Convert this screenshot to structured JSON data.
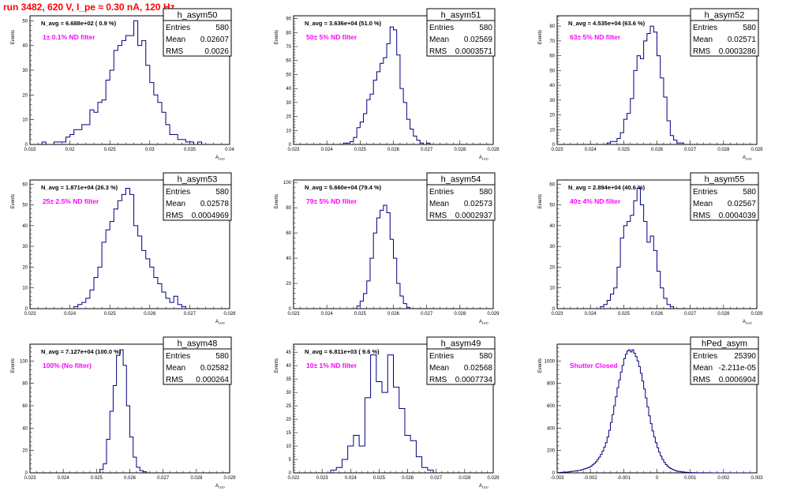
{
  "title": "run 3482,   620 V, I_pe ≈ 0.30 nA, 120 Hz",
  "colors": {
    "title": "#ff0000",
    "hist": "#000080",
    "label": "#ff00ff",
    "frame": "#000000"
  },
  "chart_data": [
    {
      "type": "bar",
      "name": "h_asym50",
      "stats": {
        "Entries": "580",
        "Mean": "0.02607",
        "RMS": "0.0026"
      },
      "navg": "N_avg = 6.688e+02 ( 0.9 %)",
      "label": "1± 0.1% ND filter",
      "xlabel": "A",
      "xlabel_sub": "LED",
      "ylabel": "Events",
      "xlim": [
        0.015,
        0.04
      ],
      "ylim": [
        0,
        52
      ],
      "xticks": [
        0.015,
        0.02,
        0.025,
        0.03,
        0.035,
        0.04
      ],
      "xtick_labels": [
        "0.015",
        "0.02",
        "0.025",
        "0.03",
        "0.035",
        "0.04"
      ],
      "yticks": [
        0,
        10,
        20,
        30,
        40,
        50
      ],
      "ytick_labels": [
        "0",
        "10",
        "20",
        "30",
        "40",
        "50"
      ],
      "bin_start": 0.0165,
      "bin_width": 0.0005,
      "values": [
        1,
        0,
        0,
        1,
        1,
        1,
        3,
        4,
        6,
        6,
        8,
        8,
        14,
        13,
        17,
        18,
        26,
        30,
        38,
        40,
        42,
        44,
        44,
        50,
        40,
        42,
        32,
        25,
        20,
        17,
        13,
        8,
        4,
        4,
        2,
        2,
        1,
        1,
        0,
        1
      ]
    },
    {
      "type": "bar",
      "name": "h_asym51",
      "stats": {
        "Entries": "580",
        "Mean": "0.02569",
        "RMS": "0.0003571"
      },
      "navg": "N_avg = 3.636e+04 (51.0 %)",
      "label": "50± 5% ND filter",
      "xlabel": "A",
      "xlabel_sub": "LED",
      "ylabel": "Events",
      "xlim": [
        0.023,
        0.029
      ],
      "ylim": [
        0,
        92
      ],
      "xticks": [
        0.023,
        0.024,
        0.025,
        0.026,
        0.027,
        0.028,
        0.029
      ],
      "xtick_labels": [
        "0.023",
        "0.024",
        "0.025",
        "0.026",
        "0.027",
        "0.028",
        "0.029"
      ],
      "yticks": [
        0,
        10,
        20,
        30,
        40,
        50,
        60,
        70,
        80,
        90
      ],
      "ytick_labels": [
        "0",
        "10",
        "20",
        "30",
        "40",
        "50",
        "60",
        "70",
        "80",
        "90"
      ],
      "bin_start": 0.0245,
      "bin_width": 0.0001,
      "values": [
        1,
        1,
        2,
        5,
        12,
        16,
        22,
        32,
        36,
        46,
        52,
        58,
        62,
        72,
        84,
        82,
        64,
        40,
        30,
        18,
        11,
        6,
        3,
        1,
        0,
        1
      ]
    },
    {
      "type": "bar",
      "name": "h_asym52",
      "stats": {
        "Entries": "580",
        "Mean": "0.02571",
        "RMS": "0.0003286"
      },
      "navg": "N_avg = 4.535e+04 (63.6 %)",
      "label": "63± 5% ND filter",
      "xlabel": "A",
      "xlabel_sub": "LED",
      "ylabel": "Events",
      "xlim": [
        0.023,
        0.029
      ],
      "ylim": [
        0,
        87
      ],
      "xticks": [
        0.023,
        0.024,
        0.025,
        0.026,
        0.027,
        0.028,
        0.029
      ],
      "xtick_labels": [
        "0.023",
        "0.024",
        "0.025",
        "0.026",
        "0.027",
        "0.028",
        "0.029"
      ],
      "yticks": [
        0,
        10,
        20,
        30,
        40,
        50,
        60,
        70,
        80
      ],
      "ytick_labels": [
        "0",
        "10",
        "20",
        "30",
        "40",
        "50",
        "60",
        "70",
        "80"
      ],
      "bin_start": 0.0245,
      "bin_width": 0.0001,
      "values": [
        1,
        2,
        2,
        4,
        8,
        17,
        21,
        31,
        50,
        60,
        58,
        70,
        75,
        80,
        76,
        60,
        45,
        32,
        16,
        6,
        3,
        1,
        1
      ]
    },
    {
      "type": "bar",
      "name": "h_asym53",
      "stats": {
        "Entries": "580",
        "Mean": "0.02578",
        "RMS": "0.0004969"
      },
      "navg": "N_avg = 1.871e+04 (26.3 %)",
      "label": "25± 2.5% ND filter",
      "xlabel": "A",
      "xlabel_sub": "LED",
      "ylabel": "Events",
      "xlim": [
        0.023,
        0.028
      ],
      "ylim": [
        0,
        62
      ],
      "xticks": [
        0.023,
        0.024,
        0.025,
        0.026,
        0.027,
        0.028
      ],
      "xtick_labels": [
        "0.023",
        "0.024",
        "0.025",
        "0.026",
        "0.027",
        "0.028"
      ],
      "yticks": [
        0,
        10,
        20,
        30,
        40,
        50,
        60
      ],
      "ytick_labels": [
        "0",
        "10",
        "20",
        "30",
        "40",
        "50",
        "60"
      ],
      "bin_start": 0.0241,
      "bin_width": 0.0001,
      "values": [
        1,
        2,
        3,
        5,
        9,
        15,
        20,
        32,
        38,
        42,
        48,
        52,
        55,
        58,
        55,
        40,
        35,
        28,
        24,
        20,
        15,
        12,
        8,
        5,
        3,
        6,
        2,
        1
      ]
    },
    {
      "type": "bar",
      "name": "h_asym54",
      "stats": {
        "Entries": "580",
        "Mean": "0.02573",
        "RMS": "0.0002937"
      },
      "navg": "N_avg = 5.660e+04 (79.4 %)",
      "label": "79± 5% ND filter",
      "xlabel": "A",
      "xlabel_sub": "LED",
      "ylabel": "Events",
      "xlim": [
        0.023,
        0.029
      ],
      "ylim": [
        0,
        102
      ],
      "xticks": [
        0.023,
        0.024,
        0.025,
        0.026,
        0.027,
        0.028,
        0.029
      ],
      "xtick_labels": [
        "0.023",
        "0.024",
        "0.025",
        "0.026",
        "0.027",
        "0.028",
        "0.029"
      ],
      "yticks": [
        0,
        20,
        40,
        60,
        80,
        100
      ],
      "ytick_labels": [
        "0",
        "20",
        "40",
        "60",
        "80",
        "100"
      ],
      "bin_start": 0.0249,
      "bin_width": 0.0001,
      "values": [
        2,
        6,
        12,
        22,
        40,
        60,
        72,
        78,
        82,
        76,
        55,
        40,
        20,
        10,
        4,
        1
      ]
    },
    {
      "type": "bar",
      "name": "h_asym55",
      "stats": {
        "Entries": "580",
        "Mean": "0.02567",
        "RMS": "0.0004039"
      },
      "navg": "N_avg = 2.894e+04 (40.6 %)",
      "label": "40± 4% ND filter",
      "xlabel": "A",
      "xlabel_sub": "LED",
      "ylabel": "Events",
      "xlim": [
        0.023,
        0.029
      ],
      "ylim": [
        0,
        62
      ],
      "xticks": [
        0.023,
        0.024,
        0.025,
        0.026,
        0.027,
        0.028,
        0.029
      ],
      "xtick_labels": [
        "0.023",
        "0.024",
        "0.025",
        "0.026",
        "0.027",
        "0.028",
        "0.029"
      ],
      "yticks": [
        0,
        10,
        20,
        30,
        40,
        50,
        60
      ],
      "ytick_labels": [
        "0",
        "10",
        "20",
        "30",
        "40",
        "50",
        "60"
      ],
      "bin_start": 0.0243,
      "bin_width": 0.0001,
      "values": [
        1,
        2,
        4,
        7,
        10,
        20,
        34,
        40,
        42,
        45,
        52,
        58,
        50,
        42,
        32,
        35,
        28,
        18,
        10,
        5,
        2,
        1
      ]
    },
    {
      "type": "bar",
      "name": "h_asym48",
      "stats": {
        "Entries": "580",
        "Mean": "0.02582",
        "RMS": "0.000264"
      },
      "navg": "N_avg = 7.127e+04 (100.0 %)",
      "label": "100% (No filter)",
      "xlabel": "A",
      "xlabel_sub": "LED",
      "ylabel": "Events",
      "xlim": [
        0.023,
        0.029
      ],
      "ylim": [
        0,
        115
      ],
      "xticks": [
        0.023,
        0.024,
        0.025,
        0.026,
        0.027,
        0.028,
        0.029
      ],
      "xtick_labels": [
        "0.023",
        "0.024",
        "0.025",
        "0.026",
        "0.027",
        "0.028",
        "0.029"
      ],
      "yticks": [
        0,
        20,
        40,
        60,
        80,
        100
      ],
      "ytick_labels": [
        "0",
        "20",
        "40",
        "60",
        "80",
        "100"
      ],
      "bin_start": 0.0251,
      "bin_width": 0.0001,
      "values": [
        3,
        8,
        30,
        55,
        78,
        105,
        110,
        96,
        60,
        32,
        14,
        5,
        2,
        1
      ]
    },
    {
      "type": "bar",
      "name": "h_asym49",
      "stats": {
        "Entries": "580",
        "Mean": "0.02568",
        "RMS": "0.0007734"
      },
      "navg": "N_avg = 6.811e+03 ( 9.6 %)",
      "label": "10± 1% ND filter",
      "xlabel": "A",
      "xlabel_sub": "LED",
      "ylabel": "Events",
      "xlim": [
        0.022,
        0.029
      ],
      "ylim": [
        0,
        48
      ],
      "xticks": [
        0.022,
        0.023,
        0.024,
        0.025,
        0.026,
        0.027,
        0.028,
        0.029
      ],
      "xtick_labels": [
        "0.022",
        "0.023",
        "0.024",
        "0.025",
        "0.026",
        "0.027",
        "0.028",
        "0.029"
      ],
      "yticks": [
        0,
        5,
        10,
        15,
        20,
        25,
        30,
        35,
        40,
        45
      ],
      "ytick_labels": [
        "0",
        "5",
        "10",
        "15",
        "20",
        "25",
        "30",
        "35",
        "40",
        "45"
      ],
      "bin_start": 0.0233,
      "bin_width": 0.0002,
      "values": [
        1,
        2,
        5,
        10,
        14,
        10,
        28,
        44,
        34,
        30,
        44,
        32,
        24,
        14,
        12,
        6,
        2,
        1
      ]
    },
    {
      "type": "bar",
      "name": "hPed_asym",
      "stats": {
        "Entries": "25390",
        "Mean": "-2.211e-05",
        "RMS": "0.0006904"
      },
      "label": "Shutter Closed",
      "ylabel": "Events",
      "xlim": [
        -0.003,
        0.003
      ],
      "ylim": [
        0,
        1150
      ],
      "xticks": [
        -0.003,
        -0.002,
        -0.001,
        0,
        0.001,
        0.002,
        0.003
      ],
      "xtick_labels": [
        "-0.003",
        "-0.002",
        "-0.001",
        "0",
        "0.001",
        "0.002",
        "0.003"
      ],
      "yticks": [
        0,
        200,
        400,
        600,
        800,
        1000
      ],
      "ytick_labels": [
        "0",
        "200",
        "400",
        "600",
        "800",
        "1000"
      ],
      "bin_start": -0.003,
      "bin_width": 5e-05,
      "values": [
        2,
        3,
        4,
        5,
        6,
        7,
        8,
        10,
        12,
        14,
        16,
        18,
        20,
        22,
        25,
        30,
        35,
        40,
        45,
        50,
        60,
        72,
        85,
        100,
        120,
        140,
        165,
        195,
        230,
        270,
        320,
        380,
        450,
        520,
        600,
        680,
        760,
        830,
        900,
        960,
        1020,
        1060,
        1090,
        1100,
        1080,
        1100,
        1070,
        1040,
        1000,
        950,
        890,
        820,
        750,
        670,
        590,
        510,
        440,
        375,
        320,
        270,
        225,
        185,
        150,
        120,
        95,
        75,
        60,
        47,
        38,
        30,
        24,
        19,
        15,
        12,
        10,
        8,
        6,
        5,
        4,
        3,
        3,
        2,
        2,
        2,
        1,
        1,
        1,
        1,
        1,
        1,
        1,
        1,
        0,
        0,
        0,
        0,
        0,
        0,
        0,
        0,
        0,
        0,
        0,
        0,
        0,
        0,
        0,
        0,
        0,
        0,
        0,
        0,
        0,
        0,
        0,
        0,
        0
      ]
    }
  ]
}
